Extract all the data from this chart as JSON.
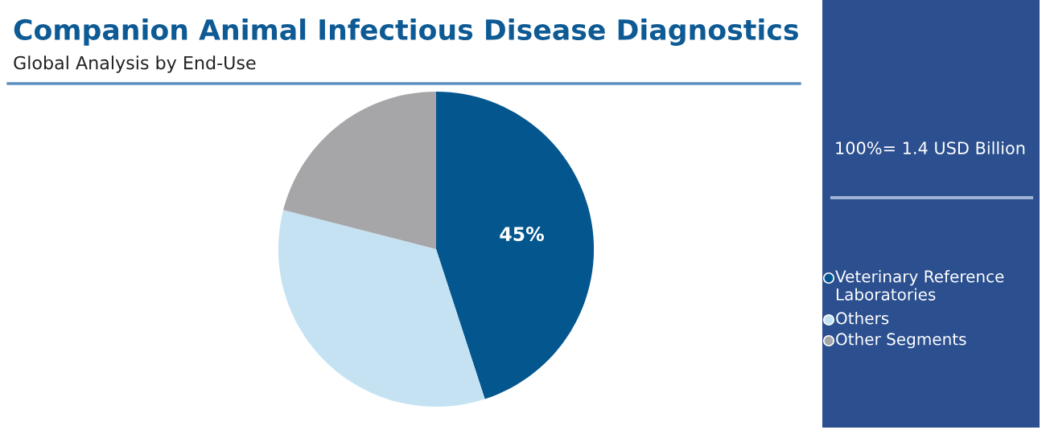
{
  "chart_data": {
    "type": "pie",
    "title": "Companion Animal Infectious Disease Diagnostics",
    "subtitle": "Global Analysis by End-Use",
    "categories": [
      "Veterinary Reference Laboratories",
      "Others",
      "Other Segments"
    ],
    "values": [
      45,
      34,
      21
    ],
    "colors": [
      "#04568f",
      "#c5e2f3",
      "#a6a6a8"
    ],
    "value_labels": [
      "45%",
      null,
      null
    ],
    "annotations": [
      "100%= 1.4 USD Billion"
    ],
    "legend": "right"
  }
}
